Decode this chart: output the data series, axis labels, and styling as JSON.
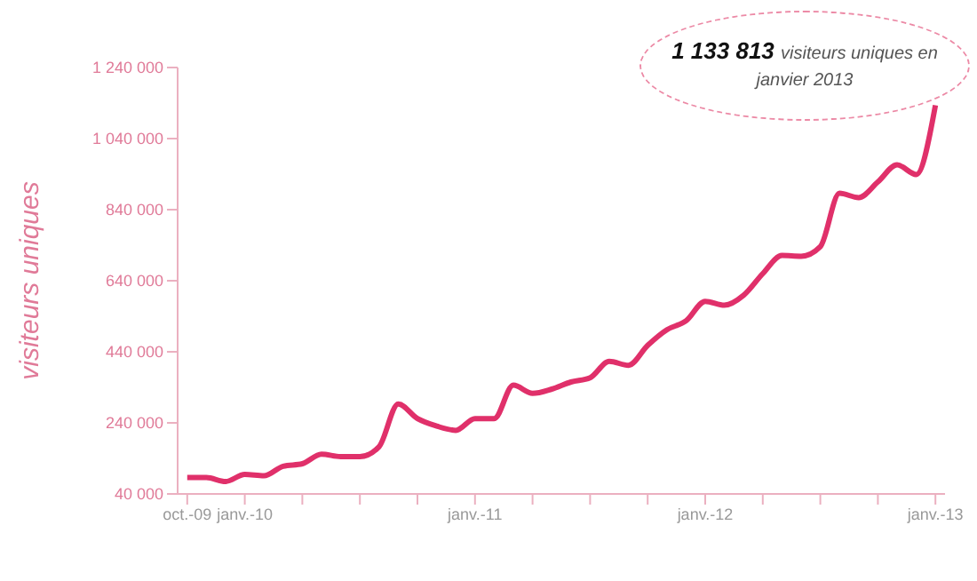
{
  "chart_data": {
    "type": "line",
    "ylabel": "visiteurs uniques",
    "x": [
      "2009-10",
      "2009-11",
      "2009-12",
      "2010-01",
      "2010-02",
      "2010-03",
      "2010-04",
      "2010-05",
      "2010-06",
      "2010-07",
      "2010-08",
      "2010-09",
      "2010-10",
      "2010-11",
      "2010-12",
      "2011-01",
      "2011-02",
      "2011-03",
      "2011-04",
      "2011-05",
      "2011-06",
      "2011-07",
      "2011-08",
      "2011-09",
      "2011-10",
      "2011-11",
      "2011-12",
      "2012-01",
      "2012-02",
      "2012-03",
      "2012-04",
      "2012-05",
      "2012-06",
      "2012-07",
      "2012-08",
      "2012-09",
      "2012-10",
      "2012-11",
      "2012-12",
      "2013-01"
    ],
    "series": [
      {
        "color": "#e0306a",
        "values": [
          86000,
          86000,
          75000,
          95000,
          91000,
          118000,
          125000,
          152000,
          145000,
          145000,
          173000,
          293000,
          252000,
          231000,
          219000,
          252000,
          252000,
          346000,
          323000,
          335000,
          355000,
          367000,
          413000,
          402000,
          458000,
          502000,
          527000,
          582000,
          571000,
          599000,
          660000,
          711000,
          709000,
          736000,
          886000,
          874000,
          918000,
          966000,
          939000,
          1133813
        ]
      }
    ],
    "xlim": [
      "2009-09-16",
      "2013-01-16"
    ],
    "xticks": [
      {
        "value": "2009-10",
        "label": "oct.-09"
      },
      {
        "value": "2010-01",
        "label": "janv.-10"
      },
      {
        "value": "2010-04",
        "label": null
      },
      {
        "value": "2010-07",
        "label": null
      },
      {
        "value": "2010-10",
        "label": null
      },
      {
        "value": "2011-01",
        "label": "janv.-11"
      },
      {
        "value": "2011-04",
        "label": null
      },
      {
        "value": "2011-07",
        "label": null
      },
      {
        "value": "2011-10",
        "label": null
      },
      {
        "value": "2012-01",
        "label": "janv.-12"
      },
      {
        "value": "2012-04",
        "label": null
      },
      {
        "value": "2012-07",
        "label": null
      },
      {
        "value": "2012-10",
        "label": null
      },
      {
        "value": "2013-01",
        "label": "janv.-13"
      }
    ],
    "ylim": [
      40000,
      1240000
    ],
    "yticks": [
      {
        "value": 40000,
        "label": "40 000"
      },
      {
        "value": 240000,
        "label": "240 000"
      },
      {
        "value": 440000,
        "label": "440 000"
      },
      {
        "value": 640000,
        "label": "640 000"
      },
      {
        "value": 840000,
        "label": "840 000"
      },
      {
        "value": 1040000,
        "label": "1 040 000"
      },
      {
        "value": 1240000,
        "label": "1 240 000"
      }
    ],
    "marker": "none",
    "line_style": "solid",
    "legend": false,
    "grid": false,
    "annotations": [
      "1 133 813 visiteurs uniques en janvier 2013"
    ]
  }
}
